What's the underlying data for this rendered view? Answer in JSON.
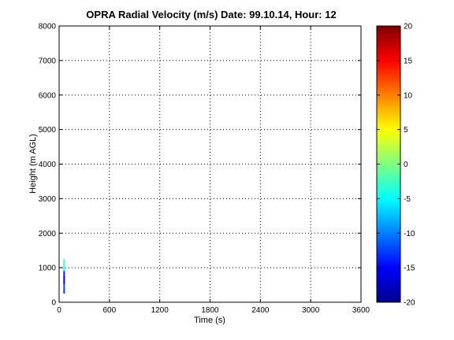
{
  "chart_data": {
    "type": "heatmap",
    "title": "OPRA Radial Velocity (m/s)  Date: 99.10.14, Hour: 12",
    "xlabel": "Time (s)",
    "ylabel": "Height (m AGL)",
    "xlim": [
      0,
      3600
    ],
    "ylim": [
      0,
      8000
    ],
    "xticks": [
      0,
      600,
      1200,
      1800,
      2400,
      3000,
      3600
    ],
    "yticks": [
      0,
      1000,
      2000,
      3000,
      4000,
      5000,
      6000,
      7000,
      8000
    ],
    "grid": true,
    "colorbar": {
      "colormap": "jet",
      "range": [
        -20,
        20
      ],
      "ticks": [
        -20,
        -15,
        -10,
        -5,
        0,
        5,
        10,
        15,
        20
      ]
    },
    "data_samples": [
      {
        "time": 60,
        "height_from": 250,
        "height_to": 400,
        "velocity": -13
      },
      {
        "time": 60,
        "height_from": 400,
        "height_to": 520,
        "velocity": -12
      },
      {
        "time": 60,
        "height_from": 520,
        "height_to": 650,
        "velocity": -17
      },
      {
        "time": 60,
        "height_from": 650,
        "height_to": 780,
        "velocity": -16
      },
      {
        "time": 60,
        "height_from": 780,
        "height_to": 900,
        "velocity": -14
      },
      {
        "time": 60,
        "height_from": 900,
        "height_to": 1000,
        "velocity": -5
      },
      {
        "time": 60,
        "height_from": 1000,
        "height_to": 1250,
        "velocity": -3
      }
    ]
  }
}
